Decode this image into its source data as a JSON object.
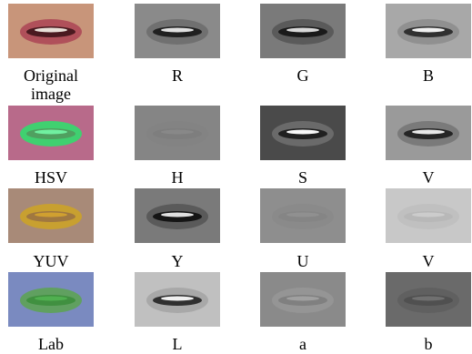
{
  "grid": {
    "rows": [
      [
        "Original image",
        "R",
        "G",
        "B"
      ],
      [
        "HSV",
        "H",
        "S",
        "V"
      ],
      [
        "YUV",
        "Y",
        "U",
        "V"
      ],
      [
        "Lab",
        "L",
        "a",
        "b"
      ]
    ]
  }
}
